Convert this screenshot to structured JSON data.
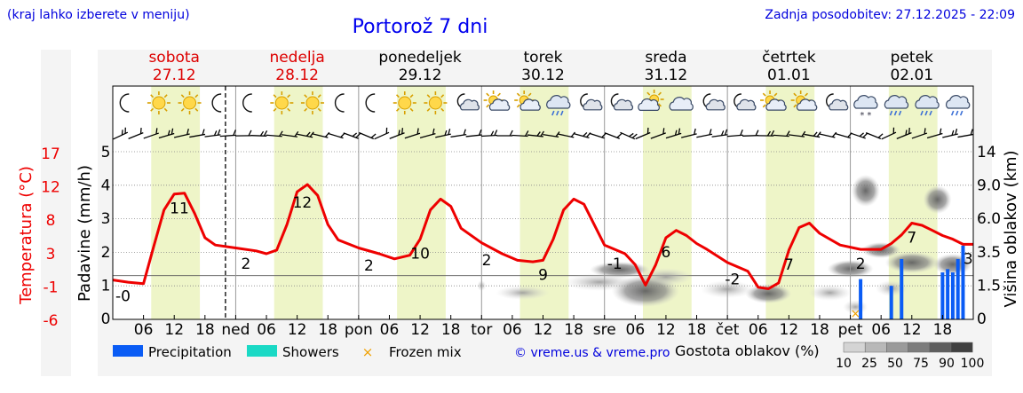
{
  "header": {
    "region_hint": "(kraj lahko izberete v meniju)",
    "title": "Portorož 7 dni",
    "updated": "Zadnja posodobitev: 27.12.2025 - 22:09"
  },
  "days": [
    {
      "name": "sobota",
      "date": "27.12",
      "weekend": true,
      "abbr": ""
    },
    {
      "name": "nedelja",
      "date": "28.12",
      "weekend": true,
      "abbr": "ned"
    },
    {
      "name": "ponedeljek",
      "date": "29.12",
      "weekend": false,
      "abbr": "pon"
    },
    {
      "name": "torek",
      "date": "30.12",
      "weekend": false,
      "abbr": "tor"
    },
    {
      "name": "sreda",
      "date": "31.12",
      "weekend": false,
      "abbr": "sre"
    },
    {
      "name": "četrtek",
      "date": "01.01",
      "weekend": false,
      "abbr": "čet"
    },
    {
      "name": "petek",
      "date": "02.01",
      "weekend": false,
      "abbr": "pet"
    }
  ],
  "weather_icons": [
    [
      "moon",
      "sun",
      "sun",
      "moon"
    ],
    [
      "moon",
      "sun",
      "sun",
      "moon"
    ],
    [
      "moon",
      "sun",
      "sun",
      "moon-cloud"
    ],
    [
      "sun-cloud",
      "sun-cloud",
      "rain-cloud",
      "moon-cloud"
    ],
    [
      "moon-cloud",
      "cloud-sun",
      "cloud",
      "moon-cloud"
    ],
    [
      "moon-cloud",
      "sun-cloud",
      "sun-cloud",
      "moon-cloud"
    ],
    [
      "snow-cloud",
      "rain-cloud",
      "rain-cloud",
      "rain-cloud"
    ]
  ],
  "legend": {
    "precip": "Precipitation",
    "showers": "Showers",
    "frozen": "Frozen mix",
    "credit": "© vreme.us & vreme.pro",
    "cloud_density": "Gostota oblakov (%)",
    "cloud_levels": [
      "10",
      "25",
      "50",
      "75",
      "90",
      "100"
    ]
  },
  "chart_data": {
    "type": "line",
    "title": "Portorož 7 dni",
    "x_unit": "hours since 27.12 00:00",
    "x_range": [
      0,
      168
    ],
    "x_ticks": [
      "06",
      "12",
      "18",
      "ned",
      "06",
      "12",
      "18",
      "pon",
      "06",
      "12",
      "18",
      "tor",
      "06",
      "12",
      "18",
      "sre",
      "06",
      "12",
      "18",
      "čet",
      "06",
      "12",
      "18",
      "pet",
      "06",
      "12",
      "18"
    ],
    "axes": {
      "temperature": {
        "label": "Temperatura (°C)",
        "ticks": [
          "17",
          "12",
          "8",
          "3",
          "-1",
          "-6"
        ],
        "range": [
          -6,
          17
        ]
      },
      "precip": {
        "label": "Padavine (mm/h)",
        "ticks": [
          "5",
          "4",
          "3",
          "2",
          "1",
          "0"
        ],
        "range": [
          0,
          5
        ]
      },
      "cloud_height": {
        "label": "Višina oblakov (km)",
        "ticks": [
          "14",
          "9.0",
          "6.0",
          "3.5",
          "1.5",
          "0"
        ],
        "range": [
          0,
          14
        ]
      }
    },
    "now_hour": 22,
    "temperature_series": {
      "name": "Temperatura",
      "x": [
        0,
        3,
        6,
        8,
        10,
        12,
        14,
        16,
        18,
        20,
        24,
        28,
        30,
        32,
        34,
        36,
        38,
        40,
        42,
        44,
        48,
        52,
        55,
        58,
        60,
        62,
        64,
        66,
        68,
        72,
        76,
        79,
        82,
        84,
        86,
        88,
        90,
        92,
        96,
        100,
        102,
        104,
        106,
        108,
        110,
        112,
        114,
        116,
        120,
        124,
        126,
        128,
        130,
        132,
        134,
        136,
        138,
        142,
        146,
        150,
        152,
        154,
        156,
        158,
        160,
        162,
        164,
        166,
        168
      ],
      "y": [
        -0.6,
        -0.9,
        -1.1,
        4,
        9,
        11.2,
        11.3,
        8.5,
        5.2,
        4.2,
        3.8,
        3.4,
        3,
        3.5,
        7,
        11.5,
        12.5,
        11,
        7,
        4.9,
        3.8,
        3,
        2.3,
        2.8,
        5,
        9,
        10.5,
        9.5,
        6.5,
        4.5,
        3,
        2.1,
        1.9,
        2.1,
        5,
        9,
        10.5,
        9.8,
        4.2,
        3,
        1.5,
        -1.3,
        1.5,
        5.2,
        6.2,
        5.5,
        4.4,
        3.6,
        1.8,
        0.6,
        -1.6,
        -1.8,
        -1,
        3.5,
        6.6,
        7.2,
        5.8,
        4.2,
        3.6,
        3.6,
        4.4,
        5.6,
        7.2,
        6.9,
        6.2,
        5.5,
        5,
        4.3,
        4.3
      ]
    },
    "temperature_labels": [
      {
        "x": 2,
        "text": "-0"
      },
      {
        "x": 13,
        "text": "11"
      },
      {
        "x": 26,
        "text": "2"
      },
      {
        "x": 37,
        "text": "12"
      },
      {
        "x": 50,
        "text": "2"
      },
      {
        "x": 60,
        "text": "10"
      },
      {
        "x": 73,
        "text": "2"
      },
      {
        "x": 84,
        "text": "9"
      },
      {
        "x": 98,
        "text": "-1"
      },
      {
        "x": 108,
        "text": "6"
      },
      {
        "x": 121,
        "text": "-2"
      },
      {
        "x": 132,
        "text": "7"
      },
      {
        "x": 146,
        "text": "2"
      },
      {
        "x": 156,
        "text": "7"
      },
      {
        "x": 167,
        "text": "3"
      }
    ],
    "precipitation_series": {
      "name": "Padavine",
      "x": [
        146,
        152,
        154,
        162,
        163,
        164,
        165,
        166
      ],
      "y": [
        1.2,
        1.0,
        1.8,
        1.4,
        1.5,
        1.4,
        1.8,
        2.2
      ]
    },
    "frozen_mix_x": [
      145
    ]
  }
}
